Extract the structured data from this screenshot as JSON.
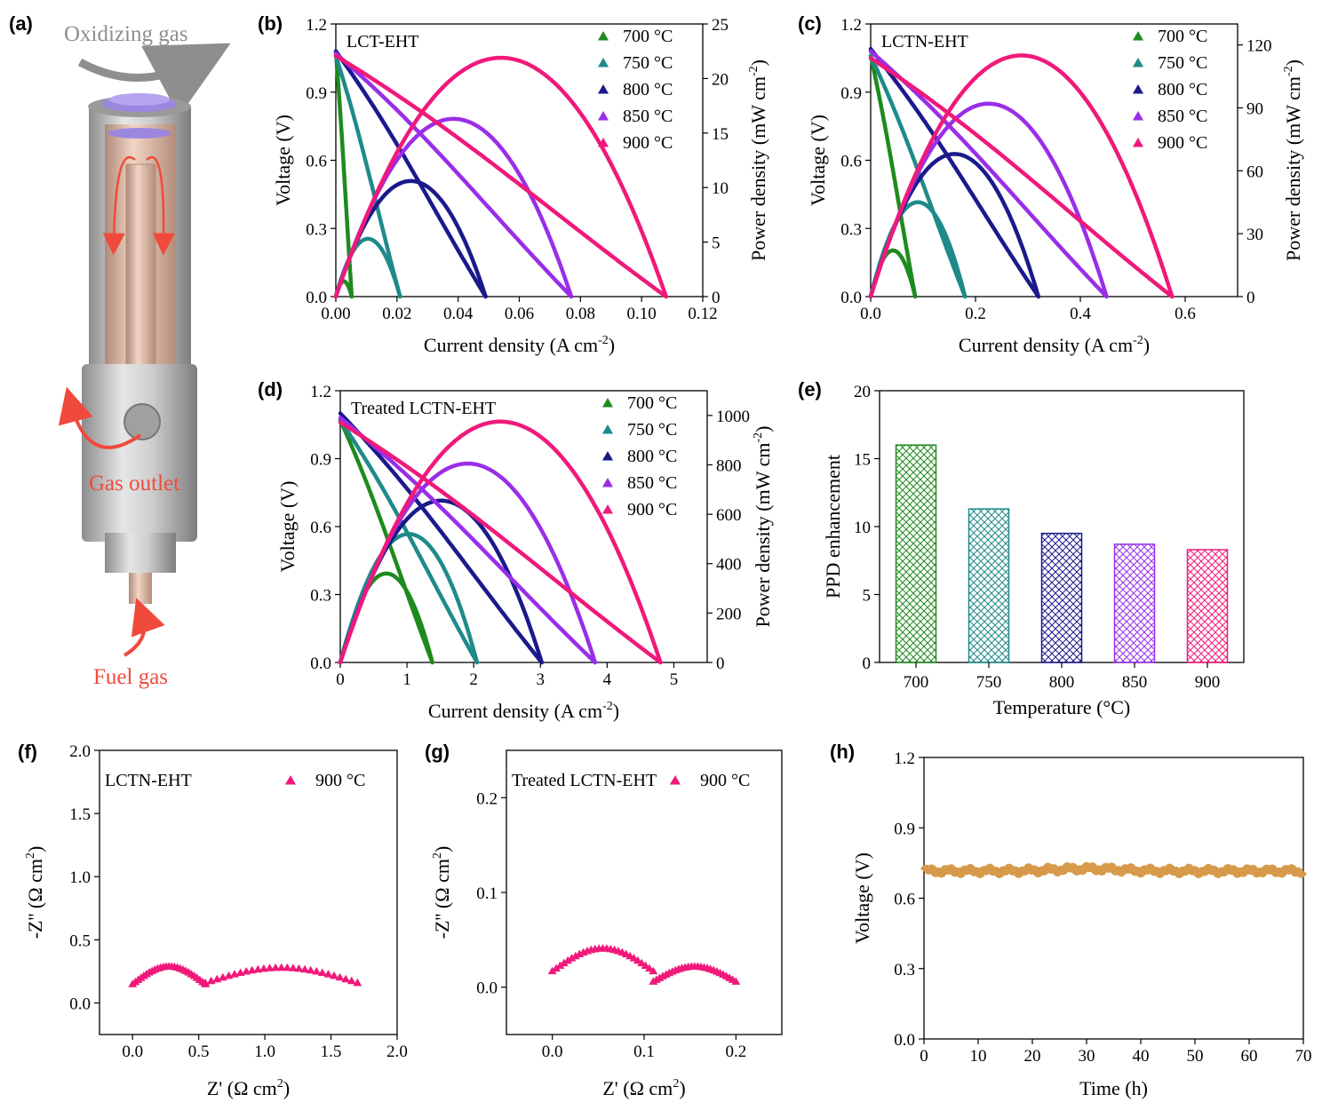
{
  "figure_labels": {
    "a": "(a)",
    "b": "(b)",
    "c": "(c)",
    "d": "(d)",
    "e": "(e)",
    "f": "(f)",
    "g": "(g)",
    "h": "(h)"
  },
  "schematic": {
    "oxidizing_gas": "Oxidizing gas",
    "gas_outlet": "Gas outlet",
    "fuel_gas": "Fuel gas"
  },
  "colors": {
    "t700": "#1e8a1e",
    "t750": "#1f8a8a",
    "t800": "#1a1a8c",
    "t850": "#9a2ee8",
    "t900": "#f0197a",
    "stability": "#d79a4a",
    "frame": "#000000"
  },
  "chart_data": [
    {
      "id": "b",
      "type": "line",
      "title": "LCT-EHT",
      "xlabel": "Current density (A cm",
      "xlabel_sup": "-2",
      "xlabel_end": ")",
      "ylabel": "Voltage (V)",
      "y2label": "Power density (mW cm",
      "y2label_sup": "-2",
      "y2label_end": ")",
      "xlim": [
        0,
        0.12
      ],
      "ylim": [
        0,
        1.2
      ],
      "y2lim": [
        0,
        25
      ],
      "xticks": [
        "0.00",
        "0.02",
        "0.04",
        "0.06",
        "0.08",
        "0.10",
        "0.12"
      ],
      "yticks": [
        "0.0",
        "0.3",
        "0.6",
        "0.9",
        "1.2"
      ],
      "y2ticks": [
        "0",
        "5",
        "10",
        "15",
        "20",
        "25"
      ],
      "series": [
        {
          "name": "700 °C",
          "color_key": "t700",
          "ocv": 1.08,
          "jmax": 0.0052,
          "ppd": 1.4
        },
        {
          "name": "750 °C",
          "color_key": "t750",
          "ocv": 1.06,
          "jmax": 0.021,
          "ppd": 5.3
        },
        {
          "name": "800 °C",
          "color_key": "t800",
          "ocv": 1.08,
          "jmax": 0.049,
          "ppd": 10.6
        },
        {
          "name": "850 °C",
          "color_key": "t850",
          "ocv": 1.07,
          "jmax": 0.077,
          "ppd": 16.3
        },
        {
          "name": "900 °C",
          "color_key": "t900",
          "ocv": 1.06,
          "jmax": 0.108,
          "ppd": 21.9
        }
      ]
    },
    {
      "id": "c",
      "type": "line",
      "title": "LCTN-EHT",
      "xlabel": "Current density (A cm",
      "xlabel_sup": "-2",
      "xlabel_end": ")",
      "ylabel": "Voltage (V)",
      "y2label": "Power density (mW cm",
      "y2label_sup": "-2",
      "y2label_end": ")",
      "xlim": [
        0,
        0.7
      ],
      "ylim": [
        0,
        1.2
      ],
      "y2lim": [
        0,
        130
      ],
      "xticks": [
        "0.0",
        "0.2",
        "0.4",
        "0.6"
      ],
      "yticks": [
        "0.0",
        "0.3",
        "0.6",
        "0.9",
        "1.2"
      ],
      "y2ticks": [
        "0",
        "30",
        "60",
        "90",
        "120"
      ],
      "series": [
        {
          "name": "700 °C",
          "color_key": "t700",
          "ocv": 1.06,
          "jmax": 0.085,
          "ppd": 22
        },
        {
          "name": "750 °C",
          "color_key": "t750",
          "ocv": 1.06,
          "jmax": 0.18,
          "ppd": 45
        },
        {
          "name": "800 °C",
          "color_key": "t800",
          "ocv": 1.09,
          "jmax": 0.32,
          "ppd": 68
        },
        {
          "name": "850 °C",
          "color_key": "t850",
          "ocv": 1.08,
          "jmax": 0.45,
          "ppd": 92
        },
        {
          "name": "900 °C",
          "color_key": "t900",
          "ocv": 1.05,
          "jmax": 0.575,
          "ppd": 115
        }
      ]
    },
    {
      "id": "d",
      "type": "line",
      "title": "Treated LCTN-EHT",
      "xlabel": "Current density (A cm",
      "xlabel_sup": "-2",
      "xlabel_end": ")",
      "ylabel": "Voltage (V)",
      "y2label": "Power density (mW cm",
      "y2label_sup": "-2",
      "y2label_end": ")",
      "xlim": [
        0,
        5.5
      ],
      "ylim": [
        0,
        1.2
      ],
      "y2lim": [
        0,
        1100
      ],
      "xticks": [
        "0",
        "1",
        "2",
        "3",
        "4",
        "5"
      ],
      "yticks": [
        "0.0",
        "0.3",
        "0.6",
        "0.9",
        "1.2"
      ],
      "y2ticks": [
        "0",
        "200",
        "400",
        "600",
        "800",
        "1000"
      ],
      "series": [
        {
          "name": "700 °C",
          "color_key": "t700",
          "ocv": 1.07,
          "jmax": 1.38,
          "ppd": 360
        },
        {
          "name": "750 °C",
          "color_key": "t750",
          "ocv": 1.07,
          "jmax": 2.05,
          "ppd": 520
        },
        {
          "name": "800 °C",
          "color_key": "t800",
          "ocv": 1.1,
          "jmax": 3.02,
          "ppd": 655
        },
        {
          "name": "850 °C",
          "color_key": "t850",
          "ocv": 1.08,
          "jmax": 3.82,
          "ppd": 805
        },
        {
          "name": "900 °C",
          "color_key": "t900",
          "ocv": 1.06,
          "jmax": 4.8,
          "ppd": 975
        }
      ]
    },
    {
      "id": "e",
      "type": "bar",
      "xlabel": "Temperature (°C)",
      "ylabel": "PPD enhancement",
      "categories": [
        "700",
        "750",
        "800",
        "850",
        "900"
      ],
      "values": [
        16.0,
        11.3,
        9.5,
        8.7,
        8.3
      ],
      "color_keys": [
        "t700",
        "t750",
        "t800",
        "t850",
        "t900"
      ],
      "ylim": [
        0,
        20
      ],
      "yticks": [
        "0",
        "5",
        "10",
        "15",
        "20"
      ]
    },
    {
      "id": "f",
      "type": "scatter",
      "title": "LCTN-EHT",
      "legend": "900 °C",
      "xlabel": "Z' (Ω cm",
      "xlabel_sup": "2",
      "xlabel_end": ")",
      "ylabel": "-Z'' (Ω cm",
      "ylabel_sup": "2",
      "ylabel_end": ")",
      "xlim": [
        -0.25,
        2.0
      ],
      "ylim": [
        -0.25,
        2.0
      ],
      "xticks": [
        "0.0",
        "0.5",
        "1.0",
        "1.5",
        "2.0"
      ],
      "yticks": [
        "0.0",
        "0.5",
        "1.0",
        "1.5",
        "2.0"
      ],
      "arcs": [
        {
          "x_start": 0.0,
          "x_end": 0.55,
          "y_base": 0.15,
          "y_peak": 0.29
        },
        {
          "x_start": 0.55,
          "x_end": 1.7,
          "y_base": 0.16,
          "y_peak": 0.28
        }
      ]
    },
    {
      "id": "g",
      "type": "scatter",
      "title": "Treated LCTN-EHT",
      "legend": "900 °C",
      "xlabel": "Z' (Ω cm",
      "xlabel_sup": "2",
      "xlabel_end": ")",
      "ylabel": "-Z'' (Ω cm",
      "ylabel_sup": "2",
      "ylabel_end": ")",
      "xlim": [
        -0.05,
        0.25
      ],
      "ylim": [
        -0.05,
        0.25
      ],
      "xticks": [
        "0.0",
        "0.1",
        "0.2"
      ],
      "yticks": [
        "0.0",
        "0.1",
        "0.2"
      ],
      "arcs": [
        {
          "x_start": 0.0,
          "x_end": 0.11,
          "y_base": 0.017,
          "y_peak": 0.041
        },
        {
          "x_start": 0.11,
          "x_end": 0.2,
          "y_base": 0.006,
          "y_peak": 0.022
        }
      ]
    },
    {
      "id": "h",
      "type": "line",
      "xlabel": "Time (h)",
      "ylabel": "Voltage (V)",
      "xlim": [
        0,
        70
      ],
      "ylim": [
        0,
        1.2
      ],
      "xticks": [
        "0",
        "10",
        "20",
        "30",
        "40",
        "50",
        "60",
        "70"
      ],
      "yticks": [
        "0.0",
        "0.3",
        "0.6",
        "0.9",
        "1.2"
      ],
      "mean_voltage": 0.72
    }
  ]
}
